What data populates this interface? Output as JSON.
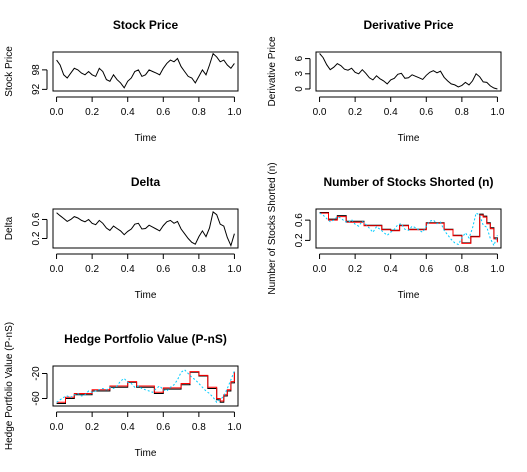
{
  "chart_data": [
    {
      "type": "line",
      "title": "Stock Price",
      "xlabel": "Time",
      "ylabel": "Stock Price",
      "xlim": [
        -0.02,
        1.02
      ],
      "ylim": [
        91.5,
        103.5
      ],
      "x_ticks": [
        0.0,
        0.2,
        0.4,
        0.6,
        0.8,
        1.0
      ],
      "x_tick_labels": [
        "0.0",
        "0.2",
        "0.4",
        "0.6",
        "0.8",
        "1.0"
      ],
      "y_ticks": [
        92,
        98
      ],
      "y_tick_labels": [
        "92",
        "98"
      ],
      "series": [
        {
          "color": "#000000",
          "x": [
            0.0,
            0.02,
            0.04,
            0.06,
            0.08,
            0.1,
            0.12,
            0.14,
            0.16,
            0.18,
            0.2,
            0.22,
            0.24,
            0.26,
            0.28,
            0.3,
            0.32,
            0.34,
            0.36,
            0.38,
            0.4,
            0.42,
            0.44,
            0.46,
            0.48,
            0.5,
            0.52,
            0.54,
            0.56,
            0.58,
            0.6,
            0.62,
            0.64,
            0.66,
            0.68,
            0.7,
            0.72,
            0.74,
            0.76,
            0.78,
            0.8,
            0.82,
            0.84,
            0.86,
            0.88,
            0.9,
            0.92,
            0.94,
            0.96,
            0.98,
            1.0
          ],
          "y": [
            101,
            99.5,
            96.5,
            95.5,
            97,
            98.5,
            98,
            97,
            96.5,
            97.5,
            96.5,
            96,
            98.5,
            97.5,
            95,
            94.5,
            96.5,
            95,
            94,
            92.5,
            94.5,
            95.5,
            97.5,
            98,
            96,
            96.5,
            98,
            97.5,
            97,
            96.5,
            98.5,
            100,
            101,
            100.5,
            101.5,
            99,
            97.5,
            96,
            95.5,
            94,
            96,
            98,
            96.5,
            99.5,
            103,
            102,
            100.5,
            101,
            99.5,
            98.5,
            100
          ]
        }
      ]
    },
    {
      "type": "line",
      "title": "Derivative Price",
      "xlabel": "Time",
      "ylabel": "Derivative Price",
      "xlim": [
        -0.02,
        1.02
      ],
      "ylim": [
        -0.4,
        7.3
      ],
      "x_ticks": [
        0.0,
        0.2,
        0.4,
        0.6,
        0.8,
        1.0
      ],
      "x_tick_labels": [
        "0.0",
        "0.2",
        "0.4",
        "0.6",
        "0.8",
        "1.0"
      ],
      "y_ticks": [
        0,
        3,
        6
      ],
      "y_tick_labels": [
        "0",
        "3",
        "6"
      ],
      "series": [
        {
          "color": "#000000",
          "x": [
            0.0,
            0.02,
            0.04,
            0.06,
            0.08,
            0.1,
            0.12,
            0.14,
            0.16,
            0.18,
            0.2,
            0.22,
            0.24,
            0.26,
            0.28,
            0.3,
            0.32,
            0.34,
            0.36,
            0.38,
            0.4,
            0.42,
            0.44,
            0.46,
            0.48,
            0.5,
            0.52,
            0.54,
            0.56,
            0.58,
            0.6,
            0.62,
            0.64,
            0.66,
            0.68,
            0.7,
            0.72,
            0.74,
            0.76,
            0.78,
            0.8,
            0.82,
            0.84,
            0.86,
            0.88,
            0.9,
            0.92,
            0.94,
            0.96,
            0.98,
            1.0
          ],
          "y": [
            7.0,
            6.2,
            4.8,
            3.8,
            4.3,
            5.0,
            4.6,
            3.9,
            3.7,
            4.1,
            3.3,
            3.0,
            3.8,
            3.1,
            2.2,
            1.8,
            2.6,
            2.0,
            1.6,
            1.0,
            1.8,
            2.1,
            2.9,
            3.1,
            2.1,
            2.2,
            2.8,
            2.5,
            2.2,
            1.9,
            2.7,
            3.3,
            3.6,
            3.2,
            3.5,
            2.3,
            1.6,
            1.0,
            0.8,
            0.4,
            0.7,
            1.3,
            0.8,
            1.6,
            3.0,
            2.4,
            1.4,
            1.3,
            0.6,
            0.2,
            0.0
          ]
        }
      ]
    },
    {
      "type": "line",
      "title": "Delta",
      "xlabel": "Time",
      "ylabel": "Delta",
      "xlim": [
        -0.02,
        1.02
      ],
      "ylim": [
        0.0,
        0.82
      ],
      "x_ticks": [
        0.0,
        0.2,
        0.4,
        0.6,
        0.8,
        1.0
      ],
      "x_tick_labels": [
        "0.0",
        "0.2",
        "0.4",
        "0.6",
        "0.8",
        "1.0"
      ],
      "y_ticks": [
        0.2,
        0.6
      ],
      "y_tick_labels": [
        "0.2",
        "0.6"
      ],
      "series": [
        {
          "color": "#000000",
          "x": [
            0.0,
            0.02,
            0.04,
            0.06,
            0.08,
            0.1,
            0.12,
            0.14,
            0.16,
            0.18,
            0.2,
            0.22,
            0.24,
            0.26,
            0.28,
            0.3,
            0.32,
            0.34,
            0.36,
            0.38,
            0.4,
            0.42,
            0.44,
            0.46,
            0.48,
            0.5,
            0.52,
            0.54,
            0.56,
            0.58,
            0.6,
            0.62,
            0.64,
            0.66,
            0.68,
            0.7,
            0.72,
            0.74,
            0.76,
            0.78,
            0.8,
            0.82,
            0.84,
            0.86,
            0.88,
            0.9,
            0.92,
            0.94,
            0.96,
            0.98,
            1.0
          ],
          "y": [
            0.74,
            0.68,
            0.62,
            0.56,
            0.6,
            0.66,
            0.63,
            0.58,
            0.55,
            0.6,
            0.52,
            0.49,
            0.58,
            0.52,
            0.42,
            0.37,
            0.46,
            0.41,
            0.36,
            0.28,
            0.35,
            0.4,
            0.5,
            0.52,
            0.4,
            0.41,
            0.48,
            0.44,
            0.4,
            0.36,
            0.47,
            0.55,
            0.58,
            0.52,
            0.56,
            0.4,
            0.3,
            0.2,
            0.12,
            0.08,
            0.24,
            0.36,
            0.24,
            0.42,
            0.76,
            0.7,
            0.5,
            0.46,
            0.22,
            0.05,
            0.3
          ]
        }
      ]
    },
    {
      "type": "line",
      "title": "Number of Stocks Shorted (n)",
      "xlabel": "Time",
      "ylabel": "Number of Stocks Shorted (n)",
      "xlim": [
        -0.02,
        1.02
      ],
      "ylim": [
        0.05,
        0.82
      ],
      "x_ticks": [
        0.0,
        0.2,
        0.4,
        0.6,
        0.8,
        1.0
      ],
      "x_tick_labels": [
        "0.0",
        "0.2",
        "0.4",
        "0.6",
        "0.8",
        "1.0"
      ],
      "y_ticks": [
        0.2,
        0.6
      ],
      "y_tick_labels": [
        "0.2",
        "0.6"
      ],
      "series": [
        {
          "color": "#000000",
          "step": true,
          "x": [
            0.0,
            0.05,
            0.1,
            0.15,
            0.2,
            0.25,
            0.3,
            0.35,
            0.4,
            0.45,
            0.5,
            0.55,
            0.6,
            0.65,
            0.7,
            0.75,
            0.8,
            0.85,
            0.9,
            0.92,
            0.94,
            0.96,
            0.98,
            1.0
          ],
          "y": [
            0.75,
            0.62,
            0.69,
            0.58,
            0.58,
            0.5,
            0.5,
            0.42,
            0.4,
            0.5,
            0.42,
            0.42,
            0.55,
            0.55,
            0.42,
            0.3,
            0.15,
            0.28,
            0.72,
            0.68,
            0.55,
            0.45,
            0.25,
            0.18
          ]
        },
        {
          "color": "#ff0000",
          "step": true,
          "x": [
            0.0,
            0.05,
            0.1,
            0.15,
            0.2,
            0.25,
            0.3,
            0.35,
            0.4,
            0.45,
            0.5,
            0.55,
            0.6,
            0.65,
            0.7,
            0.75,
            0.8,
            0.85,
            0.9,
            0.92,
            0.94,
            0.96,
            0.98,
            1.0
          ],
          "y": [
            0.74,
            0.6,
            0.67,
            0.56,
            0.56,
            0.49,
            0.49,
            0.41,
            0.39,
            0.49,
            0.41,
            0.41,
            0.54,
            0.54,
            0.41,
            0.29,
            0.14,
            0.27,
            0.7,
            0.66,
            0.53,
            0.43,
            0.23,
            0.16
          ]
        },
        {
          "color": "#00ccff",
          "dashed": true,
          "x": [
            0.0,
            0.02,
            0.04,
            0.06,
            0.08,
            0.1,
            0.12,
            0.14,
            0.16,
            0.18,
            0.2,
            0.22,
            0.24,
            0.26,
            0.28,
            0.3,
            0.32,
            0.34,
            0.36,
            0.38,
            0.4,
            0.42,
            0.44,
            0.46,
            0.48,
            0.5,
            0.52,
            0.54,
            0.56,
            0.58,
            0.6,
            0.62,
            0.64,
            0.66,
            0.68,
            0.7,
            0.72,
            0.74,
            0.76,
            0.78,
            0.8,
            0.82,
            0.84,
            0.86,
            0.88,
            0.9,
            0.92,
            0.94,
            0.96,
            0.98,
            1.0
          ],
          "y": [
            0.74,
            0.7,
            0.63,
            0.57,
            0.6,
            0.67,
            0.64,
            0.58,
            0.55,
            0.61,
            0.52,
            0.48,
            0.58,
            0.52,
            0.44,
            0.36,
            0.47,
            0.42,
            0.36,
            0.3,
            0.36,
            0.42,
            0.51,
            0.53,
            0.42,
            0.4,
            0.48,
            0.45,
            0.4,
            0.36,
            0.48,
            0.58,
            0.6,
            0.53,
            0.56,
            0.4,
            0.31,
            0.22,
            0.15,
            0.12,
            0.25,
            0.35,
            0.25,
            0.44,
            0.74,
            0.7,
            0.5,
            0.46,
            0.24,
            0.1,
            0.3
          ]
        }
      ]
    },
    {
      "type": "line",
      "title": "Hedge Portfolio Value (P-nS)",
      "xlabel": "Time",
      "ylabel": "Hedge Portfolio Value (P-nS)",
      "xlim": [
        -0.02,
        1.02
      ],
      "ylim": [
        -72,
        -8
      ],
      "x_ticks": [
        0.0,
        0.2,
        0.4,
        0.6,
        0.8,
        1.0
      ],
      "x_tick_labels": [
        "0.0",
        "0.2",
        "0.4",
        "0.6",
        "0.8",
        "1.0"
      ],
      "y_ticks": [
        -60,
        -20
      ],
      "y_tick_labels": [
        "-60",
        "-20"
      ],
      "series": [
        {
          "color": "#000000",
          "step": true,
          "x": [
            0.0,
            0.05,
            0.1,
            0.15,
            0.2,
            0.25,
            0.3,
            0.35,
            0.4,
            0.45,
            0.5,
            0.55,
            0.6,
            0.65,
            0.7,
            0.75,
            0.8,
            0.85,
            0.9,
            0.92,
            0.94,
            0.96,
            0.98,
            1.0
          ],
          "y": [
            -68,
            -60,
            -54,
            -54,
            -48,
            -48,
            -42,
            -42,
            -34,
            -42,
            -42,
            -52,
            -45,
            -45,
            -38,
            -18,
            -24,
            -44,
            -62,
            -66,
            -56,
            -48,
            -35,
            -18
          ]
        },
        {
          "color": "#ff0000",
          "step": true,
          "x": [
            0.0,
            0.05,
            0.1,
            0.15,
            0.2,
            0.25,
            0.3,
            0.35,
            0.4,
            0.45,
            0.5,
            0.55,
            0.6,
            0.65,
            0.7,
            0.75,
            0.8,
            0.85,
            0.9,
            0.92,
            0.94,
            0.96,
            0.98,
            1.0
          ],
          "y": [
            -66,
            -58,
            -52,
            -52,
            -46,
            -46,
            -40,
            -40,
            -33,
            -40,
            -40,
            -50,
            -43,
            -43,
            -36,
            -17,
            -23,
            -42,
            -60,
            -64,
            -54,
            -46,
            -33,
            -17
          ]
        },
        {
          "color": "#00ccff",
          "dashed": true,
          "x": [
            0.0,
            0.02,
            0.04,
            0.06,
            0.08,
            0.1,
            0.12,
            0.14,
            0.16,
            0.18,
            0.2,
            0.22,
            0.24,
            0.26,
            0.28,
            0.3,
            0.32,
            0.34,
            0.36,
            0.38,
            0.4,
            0.42,
            0.44,
            0.46,
            0.48,
            0.5,
            0.52,
            0.54,
            0.56,
            0.58,
            0.6,
            0.62,
            0.64,
            0.66,
            0.68,
            0.7,
            0.72,
            0.74,
            0.76,
            0.78,
            0.8,
            0.82,
            0.84,
            0.86,
            0.88,
            0.9,
            0.92,
            0.94,
            0.96,
            0.98,
            1.0
          ],
          "y": [
            -66,
            -62,
            -58,
            -56,
            -58,
            -54,
            -52,
            -56,
            -54,
            -48,
            -50,
            -48,
            -46,
            -44,
            -46,
            -42,
            -44,
            -40,
            -32,
            -28,
            -34,
            -36,
            -42,
            -40,
            -44,
            -46,
            -48,
            -50,
            -44,
            -40,
            -46,
            -48,
            -42,
            -38,
            -30,
            -18,
            -14,
            -20,
            -26,
            -30,
            -36,
            -42,
            -48,
            -52,
            -58,
            -66,
            -62,
            -56,
            -44,
            -30,
            -16
          ]
        }
      ]
    }
  ]
}
